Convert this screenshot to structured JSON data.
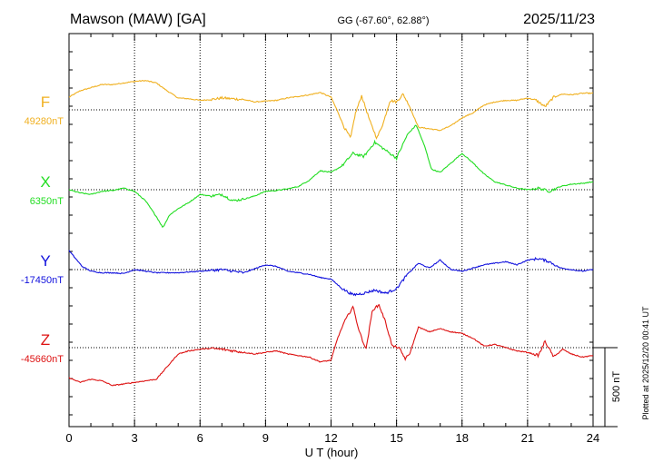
{
  "header": {
    "station": "Mawson (MAW)  [GA]",
    "coords": "GG (-67.60°,  62.88°)",
    "date": "2025/11/23"
  },
  "plotted_note": "Plotted at 2025/12/20 00:41 UT",
  "scale_label": "500 nT",
  "chart_data": {
    "type": "line",
    "xlabel": "U T (hour)",
    "xlim": [
      0,
      24
    ],
    "x_ticks": [
      "0",
      "3",
      "6",
      "9",
      "12",
      "15",
      "18",
      "21",
      "24"
    ],
    "scale_bar_nT": 500,
    "series": [
      {
        "name": "F",
        "baseline_label": "49280nT",
        "baseline": 49280,
        "color": "#f0b020",
        "x": [
          0,
          0.5,
          1,
          1.5,
          2,
          2.5,
          3,
          3.5,
          4,
          4.5,
          5,
          5.5,
          6,
          6.5,
          7,
          7.5,
          8,
          8.5,
          9,
          9.5,
          10,
          10.5,
          11,
          11.5,
          12,
          12.3,
          12.6,
          12.9,
          13.1,
          13.4,
          13.8,
          14.1,
          14.4,
          14.7,
          15,
          15.3,
          15.6,
          16,
          16.5,
          17,
          17.5,
          18,
          18.5,
          19,
          19.5,
          20,
          20.5,
          21,
          21.4,
          21.8,
          22.2,
          22.6,
          23,
          23.5,
          24
        ],
        "values": [
          49360,
          49400,
          49420,
          49440,
          49440,
          49450,
          49460,
          49465,
          49450,
          49400,
          49355,
          49350,
          49340,
          49345,
          49355,
          49350,
          49345,
          49330,
          49335,
          49340,
          49355,
          49365,
          49375,
          49390,
          49360,
          49270,
          49170,
          49100,
          49250,
          49370,
          49200,
          49100,
          49200,
          49340,
          49330,
          49380,
          49300,
          49170,
          49160,
          49150,
          49180,
          49230,
          49260,
          49310,
          49330,
          49340,
          49340,
          49355,
          49340,
          49300,
          49360,
          49380,
          49375,
          49385,
          49385
        ]
      },
      {
        "name": "X",
        "baseline_label": "6350nT",
        "baseline": 6350,
        "color": "#22dd22",
        "x": [
          0,
          0.5,
          1,
          1.5,
          2,
          2.5,
          3,
          3.5,
          4,
          4.3,
          4.6,
          5,
          5.5,
          6,
          6.5,
          7,
          7.5,
          8,
          8.5,
          9,
          9.5,
          10,
          10.5,
          11,
          11.5,
          12,
          12.5,
          13,
          13.5,
          14,
          14.5,
          15,
          15.5,
          15.9,
          16.3,
          16.6,
          17,
          17.5,
          18,
          18.5,
          19,
          19.5,
          20,
          20.5,
          21,
          21.5,
          22,
          22.5,
          23,
          23.5,
          24
        ],
        "values": [
          6350,
          6330,
          6320,
          6340,
          6345,
          6360,
          6340,
          6280,
          6180,
          6110,
          6190,
          6230,
          6270,
          6320,
          6310,
          6320,
          6280,
          6290,
          6310,
          6340,
          6345,
          6355,
          6370,
          6410,
          6470,
          6460,
          6500,
          6580,
          6560,
          6650,
          6600,
          6550,
          6700,
          6760,
          6620,
          6480,
          6460,
          6520,
          6580,
          6520,
          6450,
          6400,
          6380,
          6360,
          6350,
          6360,
          6340,
          6370,
          6385,
          6390,
          6400
        ]
      },
      {
        "name": "Y",
        "baseline_label": "-17450nT",
        "baseline": -17450,
        "color": "#1111dd",
        "x": [
          0,
          0.3,
          0.6,
          1,
          1.5,
          2,
          2.5,
          3,
          3.5,
          4,
          5,
          6,
          7,
          8,
          9,
          9.5,
          10,
          10.5,
          11,
          11.5,
          12,
          12.5,
          13,
          13.5,
          14,
          14.5,
          15,
          15.5,
          16,
          16.5,
          17,
          17.5,
          18,
          18.5,
          19,
          19.5,
          20,
          20.5,
          21,
          21.5,
          22,
          22.5,
          23,
          23.5,
          24
        ],
        "values": [
          -17330,
          -17380,
          -17430,
          -17460,
          -17470,
          -17470,
          -17475,
          -17450,
          -17460,
          -17470,
          -17470,
          -17460,
          -17450,
          -17470,
          -17420,
          -17430,
          -17460,
          -17470,
          -17480,
          -17500,
          -17510,
          -17570,
          -17610,
          -17600,
          -17580,
          -17600,
          -17570,
          -17480,
          -17410,
          -17440,
          -17390,
          -17450,
          -17460,
          -17440,
          -17420,
          -17410,
          -17400,
          -17420,
          -17390,
          -17380,
          -17400,
          -17440,
          -17450,
          -17460,
          -17450
        ]
      },
      {
        "name": "Z",
        "baseline_label": "-45660nT",
        "baseline": -45660,
        "color": "#dd1111",
        "x": [
          0,
          0.5,
          1,
          1.5,
          2,
          2.5,
          3,
          3.5,
          4,
          4.5,
          5,
          5.5,
          6,
          6.5,
          7,
          7.5,
          8,
          8.5,
          9,
          9.5,
          10,
          10.5,
          11,
          11.5,
          12,
          12.3,
          12.6,
          13,
          13.3,
          13.6,
          13.9,
          14.2,
          14.5,
          14.8,
          15.1,
          15.4,
          15.6,
          16,
          16.5,
          17,
          17.5,
          18,
          18.5,
          19,
          19.5,
          20,
          20.5,
          21,
          21.5,
          21.8,
          22.2,
          22.6,
          23,
          23.5,
          24
        ],
        "values": [
          -45850,
          -45880,
          -45860,
          -45870,
          -45900,
          -45890,
          -45880,
          -45870,
          -45860,
          -45780,
          -45700,
          -45680,
          -45670,
          -45665,
          -45670,
          -45680,
          -45690,
          -45700,
          -45690,
          -45680,
          -45700,
          -45710,
          -45720,
          -45750,
          -45740,
          -45600,
          -45500,
          -45400,
          -45560,
          -45670,
          -45420,
          -45390,
          -45500,
          -45650,
          -45660,
          -45730,
          -45700,
          -45530,
          -45560,
          -45540,
          -45560,
          -45570,
          -45600,
          -45650,
          -45640,
          -45660,
          -45680,
          -45690,
          -45710,
          -45620,
          -45720,
          -45670,
          -45700,
          -45720,
          -45710
        ]
      }
    ]
  }
}
